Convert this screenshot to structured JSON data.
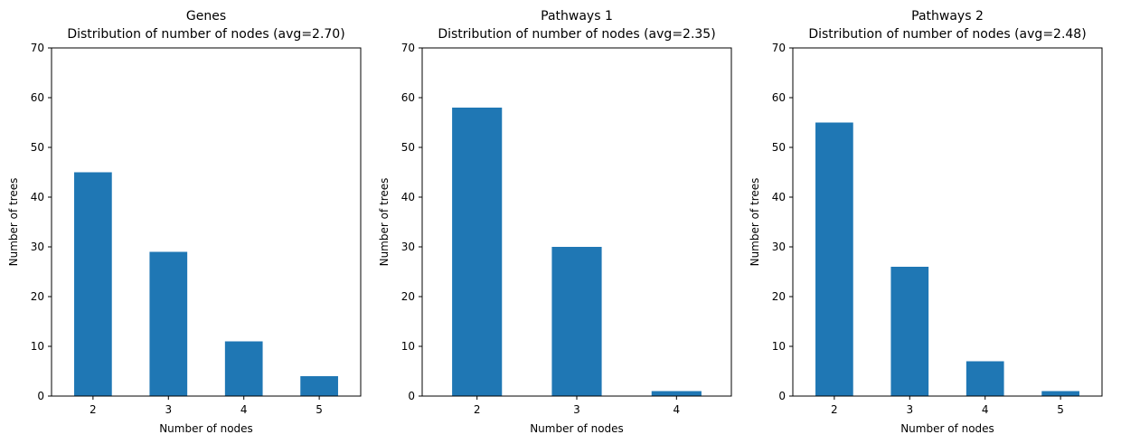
{
  "chart_data": [
    {
      "type": "bar",
      "title": "Genes",
      "subtitle": "Distribution of number of nodes (avg=2.70)",
      "xlabel": "Number of nodes",
      "ylabel": "Number of trees",
      "categories": [
        "2",
        "3",
        "4",
        "5"
      ],
      "values": [
        45,
        29,
        11,
        4
      ],
      "ylim": [
        0,
        70
      ],
      "yticks": [
        "0",
        "10",
        "20",
        "30",
        "40",
        "50",
        "60",
        "70"
      ],
      "grid": false,
      "bar_color": "#1f77b4"
    },
    {
      "type": "bar",
      "title": "Pathways 1",
      "subtitle": "Distribution of number of nodes (avg=2.35)",
      "xlabel": "Number of nodes",
      "ylabel": "Number of trees",
      "categories": [
        "2",
        "3",
        "4"
      ],
      "values": [
        58,
        30,
        1
      ],
      "ylim": [
        0,
        70
      ],
      "yticks": [
        "0",
        "10",
        "20",
        "30",
        "40",
        "50",
        "60",
        "70"
      ],
      "grid": false,
      "bar_color": "#1f77b4"
    },
    {
      "type": "bar",
      "title": "Pathways 2",
      "subtitle": "Distribution of number of nodes (avg=2.48)",
      "xlabel": "Number of nodes",
      "ylabel": "Number of trees",
      "categories": [
        "2",
        "3",
        "4",
        "5"
      ],
      "values": [
        55,
        26,
        7,
        1
      ],
      "ylim": [
        0,
        70
      ],
      "yticks": [
        "0",
        "10",
        "20",
        "30",
        "40",
        "50",
        "60",
        "70"
      ],
      "grid": false,
      "bar_color": "#1f77b4"
    }
  ]
}
